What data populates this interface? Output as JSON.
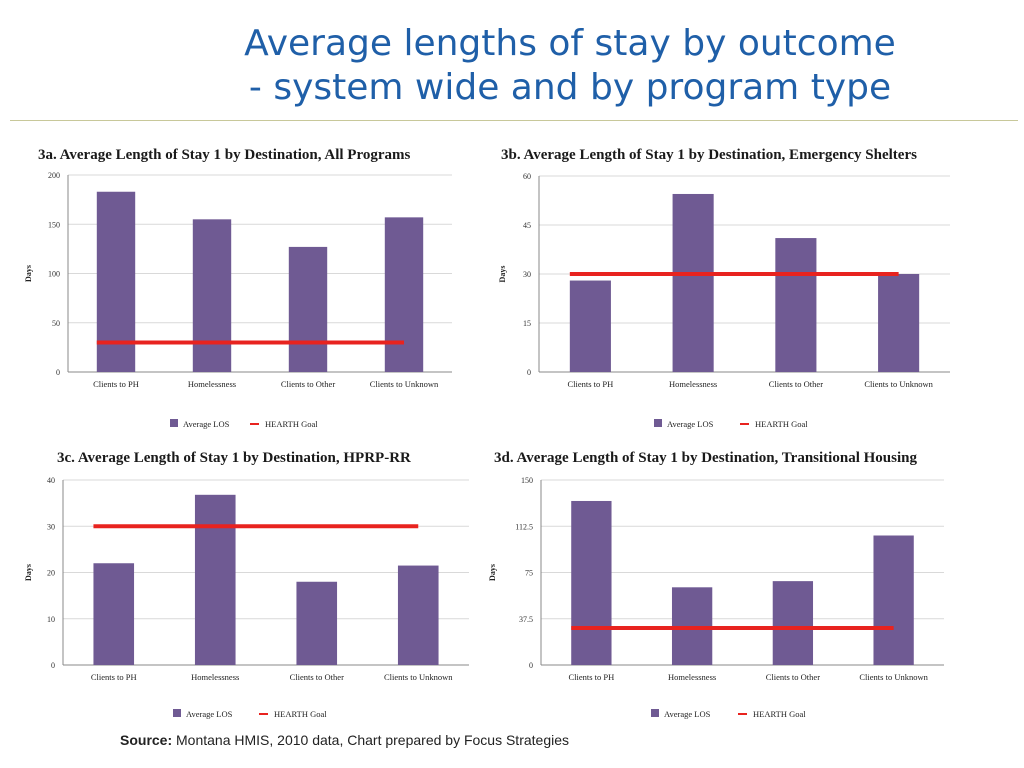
{
  "slide": {
    "title_line1": "Average lengths of stay by outcome",
    "title_line2": "- system wide and by program type",
    "source_label": "Source:",
    "source_text": "Montana HMIS, 2010 data, Chart prepared by Focus Strategies"
  },
  "colors": {
    "bar": "#6f5a93",
    "goal": "#e8231f",
    "title": "#1f5fa8"
  },
  "chart_data": [
    {
      "id": "3a",
      "type": "bar",
      "title": "3a. Average Length of Stay 1 by Destination, All Programs",
      "ylabel": "Days",
      "ylim": [
        0,
        200
      ],
      "yticks": [
        "0",
        "50",
        "100",
        "150",
        "200"
      ],
      "categories": [
        "Clients to PH",
        "Homelessness",
        "Clients to Other",
        "Clients to Unknown"
      ],
      "series": [
        {
          "name": "Average LOS",
          "values": [
            183,
            155,
            127,
            157
          ]
        }
      ],
      "goal": {
        "name": "HEARTH Goal",
        "value": 30
      },
      "legend": [
        "Average LOS",
        "HEARTH Goal"
      ]
    },
    {
      "id": "3b",
      "type": "bar",
      "title": "3b. Average Length of Stay 1 by Destination, Emergency Shelters",
      "ylabel": "Days",
      "ylim": [
        0,
        60
      ],
      "yticks": [
        "0",
        "15",
        "30",
        "45",
        "60"
      ],
      "categories": [
        "Clients to PH",
        "Homelessness",
        "Clients to Other",
        "Clients to Unknown"
      ],
      "series": [
        {
          "name": "Average LOS",
          "values": [
            28,
            54.5,
            41,
            30
          ]
        }
      ],
      "goal": {
        "name": "HEARTH Goal",
        "value": 30
      },
      "legend": [
        "Average LOS",
        "HEARTH Goal"
      ]
    },
    {
      "id": "3c",
      "type": "bar",
      "title": "3c. Average Length of Stay 1 by Destination, HPRP-RR",
      "ylabel": "Days",
      "ylim": [
        0,
        40
      ],
      "yticks": [
        "0",
        "10",
        "20",
        "30",
        "40"
      ],
      "categories": [
        "Clients to PH",
        "Homelessness",
        "Clients to Other",
        "Clients to Unknown"
      ],
      "series": [
        {
          "name": "Average LOS",
          "values": [
            22,
            36.8,
            18,
            21.5
          ]
        }
      ],
      "goal": {
        "name": "HEARTH Goal",
        "value": 30
      },
      "legend": [
        "Average LOS",
        "HEARTH Goal"
      ]
    },
    {
      "id": "3d",
      "type": "bar",
      "title": "3d. Average Length of Stay 1 by Destination, Transitional Housing",
      "ylabel": "Days",
      "ylim": [
        0,
        150
      ],
      "yticks": [
        "0",
        "37.5",
        "75",
        "112.5",
        "150"
      ],
      "categories": [
        "Clients to PH",
        "Homelessness",
        "Clients to Other",
        "Clients to Unknown"
      ],
      "series": [
        {
          "name": "Average LOS",
          "values": [
            133,
            63,
            68,
            105
          ]
        }
      ],
      "goal": {
        "name": "HEARTH Goal",
        "value": 30
      },
      "legend": [
        "Average LOS",
        "HEARTH Goal"
      ]
    }
  ]
}
